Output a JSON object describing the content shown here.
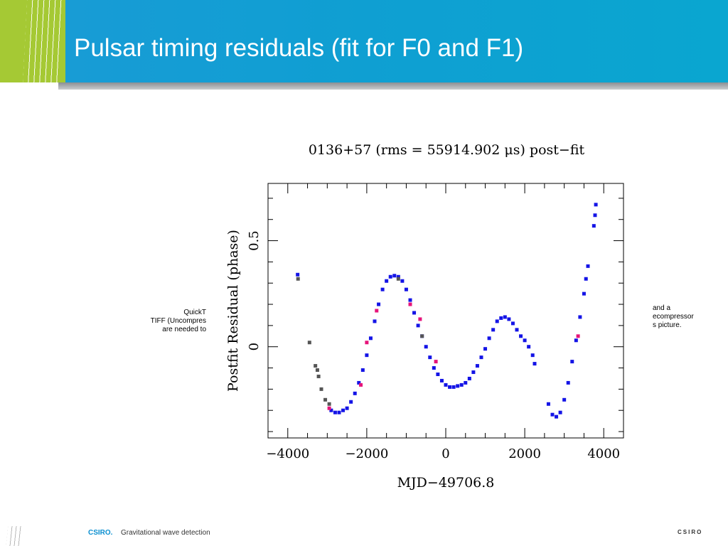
{
  "slide": {
    "title": "Pulsar timing residuals (fit for F0 and F1)"
  },
  "placeholder_left": [
    "QuickT",
    "TIFF (Uncompres",
    "are needed to"
  ],
  "placeholder_right": [
    "and a",
    "ecompressor",
    "s picture."
  ],
  "footer": {
    "brand": "CSIRO.",
    "text": "Gravitational wave detection",
    "logo": "CSIRO"
  },
  "colors": {
    "header_blue": "#1a9bd6",
    "header_green": "#a5c934",
    "series_blue": "#1414e6",
    "series_magenta": "#e6147a",
    "series_gray": "#555555"
  },
  "chart_data": {
    "type": "scatter",
    "title": "0136+57 (rms = 55914.902 μs) post−fit",
    "xlabel": "MJD−49706.8",
    "ylabel": "Postfit Residual (phase)",
    "xlim": [
      -4500,
      4500
    ],
    "ylim": [
      -0.43,
      0.77
    ],
    "x_ticks": [
      -4000,
      -2000,
      0,
      2000,
      4000
    ],
    "x_tick_labels": [
      "−4000",
      "−2000",
      "0",
      "2000",
      "4000"
    ],
    "y_ticks": [
      0,
      0.5
    ],
    "y_tick_labels": [
      "0",
      "0.5"
    ],
    "series": [
      {
        "color": "#1414e6",
        "points": [
          [
            -3750,
            0.34
          ],
          [
            -2900,
            -0.3
          ],
          [
            -2800,
            -0.31
          ],
          [
            -2700,
            -0.31
          ],
          [
            -2600,
            -0.3
          ],
          [
            -2500,
            -0.29
          ],
          [
            -2400,
            -0.26
          ],
          [
            -2300,
            -0.22
          ],
          [
            -2200,
            -0.17
          ],
          [
            -2100,
            -0.11
          ],
          [
            -2000,
            -0.04
          ],
          [
            -1900,
            0.04
          ],
          [
            -1800,
            0.12
          ],
          [
            -1700,
            0.2
          ],
          [
            -1600,
            0.27
          ],
          [
            -1500,
            0.31
          ],
          [
            -1400,
            0.33
          ],
          [
            -1300,
            0.335
          ],
          [
            -1200,
            0.33
          ],
          [
            -1100,
            0.31
          ],
          [
            -1000,
            0.27
          ],
          [
            -900,
            0.22
          ],
          [
            -800,
            0.16
          ],
          [
            -700,
            0.1
          ],
          [
            -600,
            0.05
          ],
          [
            -500,
            0.0
          ],
          [
            -400,
            -0.05
          ],
          [
            -300,
            -0.1
          ],
          [
            -200,
            -0.13
          ],
          [
            -100,
            -0.16
          ],
          [
            0,
            -0.18
          ],
          [
            100,
            -0.19
          ],
          [
            200,
            -0.19
          ],
          [
            300,
            -0.185
          ],
          [
            400,
            -0.18
          ],
          [
            500,
            -0.17
          ],
          [
            600,
            -0.15
          ],
          [
            700,
            -0.12
          ],
          [
            800,
            -0.09
          ],
          [
            900,
            -0.05
          ],
          [
            1000,
            -0.01
          ],
          [
            1100,
            0.04
          ],
          [
            1200,
            0.08
          ],
          [
            1300,
            0.12
          ],
          [
            1400,
            0.135
          ],
          [
            1500,
            0.14
          ],
          [
            1600,
            0.13
          ],
          [
            1700,
            0.11
          ],
          [
            1800,
            0.08
          ],
          [
            1900,
            0.05
          ],
          [
            2000,
            0.03
          ],
          [
            2100,
            0.0
          ],
          [
            2200,
            -0.04
          ],
          [
            2250,
            -0.08
          ],
          [
            2600,
            -0.27
          ],
          [
            2700,
            -0.32
          ],
          [
            2800,
            -0.33
          ],
          [
            2900,
            -0.31
          ],
          [
            3000,
            -0.25
          ],
          [
            3100,
            -0.17
          ],
          [
            3200,
            -0.07
          ],
          [
            3300,
            0.03
          ],
          [
            3400,
            0.14
          ],
          [
            3500,
            0.25
          ],
          [
            3550,
            0.32
          ],
          [
            3600,
            0.38
          ],
          [
            3750,
            0.57
          ],
          [
            3780,
            0.62
          ],
          [
            3800,
            0.67
          ]
        ]
      },
      {
        "color": "#e6147a",
        "points": [
          [
            -2950,
            -0.29
          ],
          [
            -2150,
            -0.18
          ],
          [
            -2000,
            0.02
          ],
          [
            -1750,
            0.17
          ],
          [
            -900,
            0.2
          ],
          [
            -650,
            0.13
          ],
          [
            -250,
            -0.07
          ],
          [
            3350,
            0.05
          ]
        ]
      },
      {
        "color": "#555555",
        "points": [
          [
            -3740,
            0.32
          ],
          [
            -3450,
            0.02
          ],
          [
            -3300,
            -0.09
          ],
          [
            -3250,
            -0.11
          ],
          [
            -3220,
            -0.14
          ],
          [
            -3150,
            -0.2
          ],
          [
            -3050,
            -0.25
          ],
          [
            -2950,
            -0.27
          ],
          [
            -600,
            0.05
          ],
          [
            -1200,
            0.32
          ]
        ]
      }
    ]
  }
}
